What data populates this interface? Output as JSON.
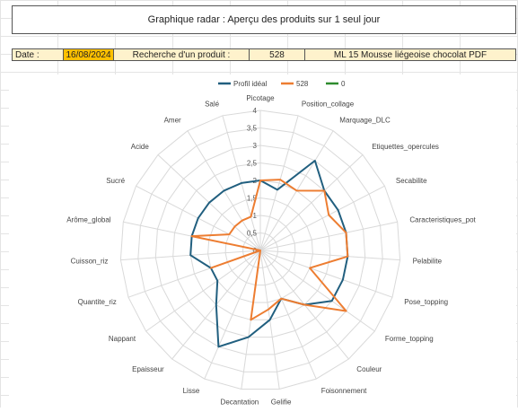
{
  "title": "Graphique radar : Aperçu des produits sur 1 seul jour",
  "info": {
    "date_label": "Date :",
    "date_value": "16/08/2024",
    "search_label": "Recherche d'un produit :",
    "product_code": "528",
    "product_name": "ML 15 Mousse liégeoise chocolat PDF"
  },
  "colors": {
    "profil": "#215f7f",
    "s528": "#ed7d31",
    "s0": "#2e8b2e",
    "date_highlight": "#ffc000",
    "field_bg": "#fef2cc"
  },
  "chart_data": {
    "type": "radar",
    "rmax": 4,
    "ticks": [
      "0",
      "0,5",
      "1",
      "1,5",
      "2",
      "2,5",
      "3",
      "3,5",
      "4"
    ],
    "categories": [
      "Picotage",
      "Position_collage",
      "Marquage_DLC",
      "Etiquettes_opercules",
      "Secabilite",
      "Caracteristiques_pot",
      "Pelabilite",
      "Pose_topping",
      "Forme_topping",
      "Couleur",
      "Foisonnement",
      "Gelifie",
      "Decantation",
      "Lisse",
      "Epaisseur",
      "Nappant",
      "Quantite_riz",
      "Cuisson_riz",
      "Arôme_global",
      "Sucré",
      "Acide",
      "Amer",
      "Salé"
    ],
    "legend": [
      "Profil idéal",
      "528",
      "0"
    ],
    "series": [
      {
        "name": "Profil idéal",
        "values": [
          2,
          1.8,
          3,
          2.5,
          2.5,
          2.5,
          2.5,
          2.5,
          2.5,
          2,
          1.5,
          2,
          2.5,
          3,
          2,
          1.5,
          1.5,
          2,
          2,
          2,
          2,
          2,
          2
        ]
      },
      {
        "name": "528",
        "values": [
          2,
          2.1,
          2,
          2.5,
          2.2,
          2.5,
          2.5,
          1.5,
          3,
          2,
          1.5,
          1.7,
          2,
          0,
          0,
          0,
          1.5,
          0,
          2,
          1,
          1,
          1,
          1
        ]
      },
      {
        "name": "0",
        "values": [
          0,
          0,
          0,
          0,
          0,
          0,
          0,
          0,
          0,
          0,
          0,
          0,
          0,
          0,
          0,
          0,
          0,
          0,
          0,
          0,
          0,
          0,
          0
        ]
      }
    ]
  }
}
